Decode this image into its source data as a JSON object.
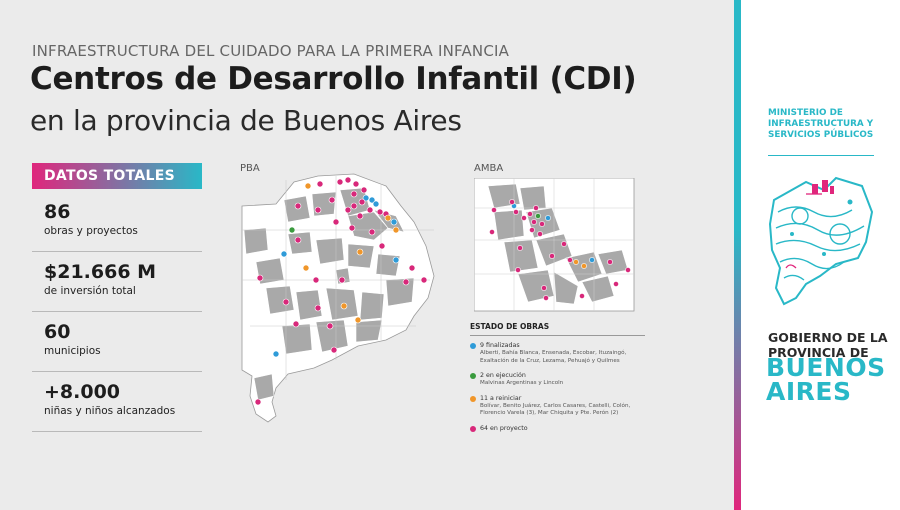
{
  "header": {
    "kicker": "INFRAESTRUCTURA DEL CUIDADO PARA LA PRIMERA INFANCIA",
    "title": "Centros de Desarrollo Infantil (CDI)",
    "subtitle": "en la provincia de Buenos Aires"
  },
  "totals": {
    "heading": "DATOS TOTALES",
    "items": [
      {
        "value": "86",
        "label": "obras y proyectos"
      },
      {
        "value": "$21.666 M",
        "label": "de inversión total"
      },
      {
        "value": "60",
        "label": "municipios"
      },
      {
        "value": "+8.000",
        "label": "niñas y niños alcanzados"
      }
    ]
  },
  "maps": {
    "pba_label": "PBA",
    "amba_label": "AMBA"
  },
  "legend": {
    "title": "ESTADO DE OBRAS",
    "items": [
      {
        "color": "#2f9bd8",
        "label": "9 finalizadas",
        "detail": [
          "Alberti, Bahía Blanca, Ensenada, Escobar, Ituzaingó,",
          "Exaltación de la Cruz, Lezama, Pehuajó y Quilmes"
        ]
      },
      {
        "color": "#3a9b3e",
        "label": "2 en ejecución",
        "detail": [
          "Malvinas Argentinas y Lincoln"
        ]
      },
      {
        "color": "#f0962a",
        "label": "11 a reiniciar",
        "detail": [
          "Bolívar, Benito Juárez, Carlos Casares, Castelli, Colón,",
          "Florencio Varela (3), Mar Chiquita y Pte. Perón (2)"
        ]
      },
      {
        "color": "#d8287a",
        "label": "64 en proyecto",
        "detail": []
      }
    ]
  },
  "ministry": {
    "lines": [
      "MINISTERIO DE",
      "INFRAESTRUCTURA Y",
      "SERVICIOS PÚBLICOS"
    ]
  },
  "government": {
    "lines": [
      "GOBIERNO DE LA",
      "PROVINCIA DE"
    ],
    "name_lines": [
      "BUENOS",
      "AIRES"
    ]
  },
  "colors": {
    "accent_cyan": "#29b8c7",
    "accent_magenta": "#e0267c",
    "map_highlight": "#a9a9a9",
    "map_base": "#ffffff"
  }
}
